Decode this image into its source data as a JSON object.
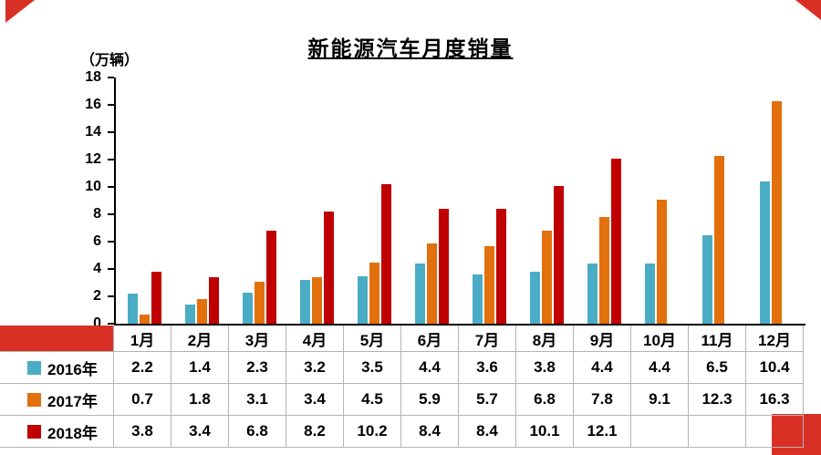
{
  "chart_data": {
    "type": "bar",
    "title": "新能源汽车月度销量",
    "unit_label": "（万辆）",
    "categories": [
      "1月",
      "2月",
      "3月",
      "4月",
      "5月",
      "6月",
      "7月",
      "8月",
      "9月",
      "10月",
      "11月",
      "12月"
    ],
    "series": [
      {
        "name": "2016年",
        "color": "#4BACC6",
        "values": [
          2.2,
          1.4,
          2.3,
          3.2,
          3.5,
          4.4,
          3.6,
          3.8,
          4.4,
          4.4,
          6.5,
          10.4
        ]
      },
      {
        "name": "2017年",
        "color": "#E2700D",
        "values": [
          0.7,
          1.8,
          3.1,
          3.4,
          4.5,
          5.9,
          5.7,
          6.8,
          7.8,
          9.1,
          12.3,
          16.3
        ]
      },
      {
        "name": "2018年",
        "color": "#C00000",
        "values": [
          3.8,
          3.4,
          6.8,
          8.2,
          10.2,
          8.4,
          8.4,
          10.1,
          12.1,
          null,
          null,
          null
        ]
      }
    ],
    "ylim": [
      0,
      18
    ],
    "ytick_step": 2,
    "grid": false,
    "legend_position": "table-left"
  },
  "decorations": {
    "accent_red": "#D93025"
  }
}
